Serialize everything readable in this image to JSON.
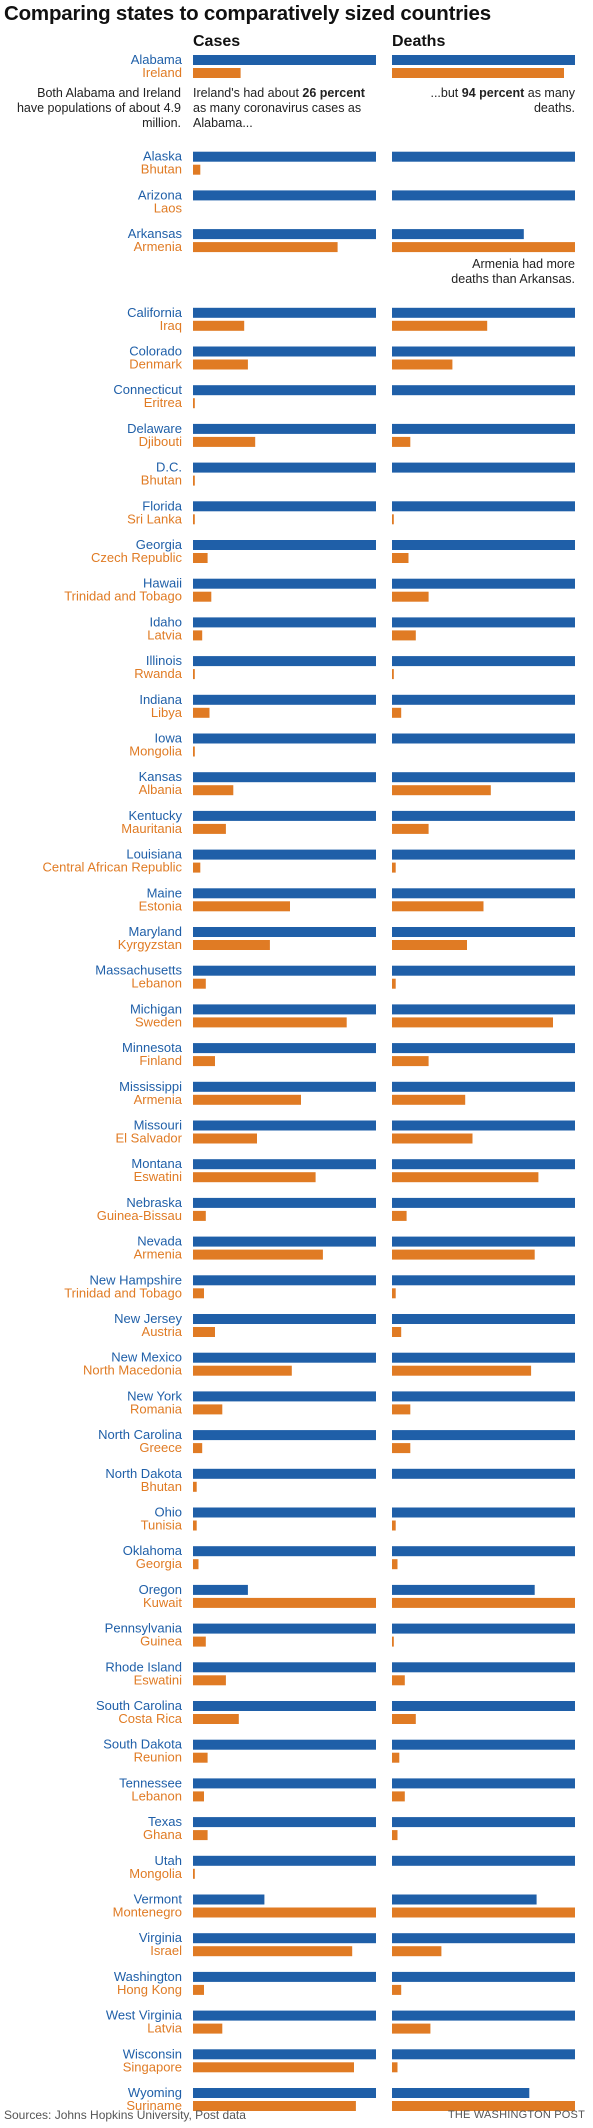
{
  "title": "Comparing states to comparatively sized countries",
  "columns": {
    "cases": "Cases",
    "deaths": "Deaths"
  },
  "colors": {
    "state": "#1f5fa8",
    "country": "#e07b24"
  },
  "notes": {
    "populations": "Both Alabama and Ireland have populations of about 4.9 million.",
    "cases_pre": "Ireland's had about ",
    "cases_bold": "26 percent",
    "cases_post": " as many coronavirus cases as Alabama...",
    "deaths_pre": "...but ",
    "deaths_bold": "94 percent",
    "deaths_post": " as many deaths.",
    "armenia": "Armenia had more deaths than Arkansas."
  },
  "footer": {
    "source": "Sources: Johns Hopkins University, Post data",
    "credit": "THE WASHINGTON POST"
  },
  "chart_data": {
    "type": "bar",
    "title": "Comparing states to comparatively sized countries",
    "value_scale": "relative share, larger of each pair = 1",
    "series": [
      "Cases",
      "Deaths"
    ],
    "pairs": [
      {
        "state": "Alabama",
        "country": "Ireland",
        "cases": [
          1,
          0.26
        ],
        "deaths": [
          1,
          0.94
        ]
      },
      {
        "state": "Alaska",
        "country": "Bhutan",
        "cases": [
          1,
          0.04
        ],
        "deaths": [
          1,
          0
        ]
      },
      {
        "state": "Arizona",
        "country": "Laos",
        "cases": [
          1,
          0
        ],
        "deaths": [
          1,
          0
        ]
      },
      {
        "state": "Arkansas",
        "country": "Armenia",
        "cases": [
          1,
          0.79
        ],
        "deaths": [
          0.72,
          1
        ]
      },
      {
        "state": "California",
        "country": "Iraq",
        "cases": [
          1,
          0.28
        ],
        "deaths": [
          1,
          0.52
        ]
      },
      {
        "state": "Colorado",
        "country": "Denmark",
        "cases": [
          1,
          0.3
        ],
        "deaths": [
          1,
          0.33
        ]
      },
      {
        "state": "Connecticut",
        "country": "Eritrea",
        "cases": [
          1,
          0.01
        ],
        "deaths": [
          1,
          0
        ]
      },
      {
        "state": "Delaware",
        "country": "Djibouti",
        "cases": [
          1,
          0.34
        ],
        "deaths": [
          1,
          0.1
        ]
      },
      {
        "state": "D.C.",
        "country": "Bhutan",
        "cases": [
          1,
          0.01
        ],
        "deaths": [
          1,
          0
        ]
      },
      {
        "state": "Florida",
        "country": "Sri Lanka",
        "cases": [
          1,
          0.01
        ],
        "deaths": [
          1,
          0.01
        ]
      },
      {
        "state": "Georgia",
        "country": "Czech Republic",
        "cases": [
          1,
          0.08
        ],
        "deaths": [
          1,
          0.09
        ]
      },
      {
        "state": "Hawaii",
        "country": "Trinidad and Tobago",
        "cases": [
          1,
          0.1
        ],
        "deaths": [
          1,
          0.2
        ]
      },
      {
        "state": "Idaho",
        "country": "Latvia",
        "cases": [
          1,
          0.05
        ],
        "deaths": [
          1,
          0.13
        ]
      },
      {
        "state": "Illinois",
        "country": "Rwanda",
        "cases": [
          1,
          0.01
        ],
        "deaths": [
          1,
          0.01
        ]
      },
      {
        "state": "Indiana",
        "country": "Libya",
        "cases": [
          1,
          0.09
        ],
        "deaths": [
          1,
          0.05
        ]
      },
      {
        "state": "Iowa",
        "country": "Mongolia",
        "cases": [
          1,
          0.01
        ],
        "deaths": [
          1,
          0
        ]
      },
      {
        "state": "Kansas",
        "country": "Albania",
        "cases": [
          1,
          0.22
        ],
        "deaths": [
          1,
          0.54
        ]
      },
      {
        "state": "Kentucky",
        "country": "Mauritania",
        "cases": [
          1,
          0.18
        ],
        "deaths": [
          1,
          0.2
        ]
      },
      {
        "state": "Louisiana",
        "country": "Central African Republic",
        "cases": [
          1,
          0.04
        ],
        "deaths": [
          1,
          0.02
        ]
      },
      {
        "state": "Maine",
        "country": "Estonia",
        "cases": [
          1,
          0.53
        ],
        "deaths": [
          1,
          0.5
        ]
      },
      {
        "state": "Maryland",
        "country": "Kyrgyzstan",
        "cases": [
          1,
          0.42
        ],
        "deaths": [
          1,
          0.41
        ]
      },
      {
        "state": "Massachusetts",
        "country": "Lebanon",
        "cases": [
          1,
          0.07
        ],
        "deaths": [
          1,
          0.02
        ]
      },
      {
        "state": "Michigan",
        "country": "Sweden",
        "cases": [
          1,
          0.84
        ],
        "deaths": [
          1,
          0.88
        ]
      },
      {
        "state": "Minnesota",
        "country": "Finland",
        "cases": [
          1,
          0.12
        ],
        "deaths": [
          1,
          0.2
        ]
      },
      {
        "state": "Mississippi",
        "country": "Armenia",
        "cases": [
          1,
          0.59
        ],
        "deaths": [
          1,
          0.4
        ]
      },
      {
        "state": "Missouri",
        "country": "El Salvador",
        "cases": [
          1,
          0.35
        ],
        "deaths": [
          1,
          0.44
        ]
      },
      {
        "state": "Montana",
        "country": "Eswatini",
        "cases": [
          1,
          0.67
        ],
        "deaths": [
          1,
          0.8
        ]
      },
      {
        "state": "Nebraska",
        "country": "Guinea-Bissau",
        "cases": [
          1,
          0.07
        ],
        "deaths": [
          1,
          0.08
        ]
      },
      {
        "state": "Nevada",
        "country": "Armenia",
        "cases": [
          1,
          0.71
        ],
        "deaths": [
          1,
          0.78
        ]
      },
      {
        "state": "New Hampshire",
        "country": "Trinidad and Tobago",
        "cases": [
          1,
          0.06
        ],
        "deaths": [
          1,
          0.02
        ]
      },
      {
        "state": "New Jersey",
        "country": "Austria",
        "cases": [
          1,
          0.12
        ],
        "deaths": [
          1,
          0.05
        ]
      },
      {
        "state": "New Mexico",
        "country": "North Macedonia",
        "cases": [
          1,
          0.54
        ],
        "deaths": [
          1,
          0.76
        ]
      },
      {
        "state": "New York",
        "country": "Romania",
        "cases": [
          1,
          0.16
        ],
        "deaths": [
          1,
          0.1
        ]
      },
      {
        "state": "North Carolina",
        "country": "Greece",
        "cases": [
          1,
          0.05
        ],
        "deaths": [
          1,
          0.1
        ]
      },
      {
        "state": "North Dakota",
        "country": "Bhutan",
        "cases": [
          1,
          0.02
        ],
        "deaths": [
          1,
          0
        ]
      },
      {
        "state": "Ohio",
        "country": "Tunisia",
        "cases": [
          1,
          0.02
        ],
        "deaths": [
          1,
          0.02
        ]
      },
      {
        "state": "Oklahoma",
        "country": "Georgia",
        "cases": [
          1,
          0.03
        ],
        "deaths": [
          1,
          0.03
        ]
      },
      {
        "state": "Oregon",
        "country": "Kuwait",
        "cases": [
          0.3,
          1
        ],
        "deaths": [
          0.78,
          1
        ]
      },
      {
        "state": "Pennsylvania",
        "country": "Guinea",
        "cases": [
          1,
          0.07
        ],
        "deaths": [
          1,
          0.01
        ]
      },
      {
        "state": "Rhode Island",
        "country": "Eswatini",
        "cases": [
          1,
          0.18
        ],
        "deaths": [
          1,
          0.07
        ]
      },
      {
        "state": "South Carolina",
        "country": "Costa Rica",
        "cases": [
          1,
          0.25
        ],
        "deaths": [
          1,
          0.13
        ]
      },
      {
        "state": "South Dakota",
        "country": "Reunion",
        "cases": [
          1,
          0.08
        ],
        "deaths": [
          1,
          0.04
        ]
      },
      {
        "state": "Tennessee",
        "country": "Lebanon",
        "cases": [
          1,
          0.06
        ],
        "deaths": [
          1,
          0.07
        ]
      },
      {
        "state": "Texas",
        "country": "Ghana",
        "cases": [
          1,
          0.08
        ],
        "deaths": [
          1,
          0.03
        ]
      },
      {
        "state": "Utah",
        "country": "Mongolia",
        "cases": [
          1,
          0.01
        ],
        "deaths": [
          1,
          0
        ]
      },
      {
        "state": "Vermont",
        "country": "Montenegro",
        "cases": [
          0.39,
          1
        ],
        "deaths": [
          0.79,
          1
        ]
      },
      {
        "state": "Virginia",
        "country": "Israel",
        "cases": [
          1,
          0.87
        ],
        "deaths": [
          1,
          0.27
        ]
      },
      {
        "state": "Washington",
        "country": "Hong Kong",
        "cases": [
          1,
          0.06
        ],
        "deaths": [
          1,
          0.05
        ]
      },
      {
        "state": "West Virginia",
        "country": "Latvia",
        "cases": [
          1,
          0.16
        ],
        "deaths": [
          1,
          0.21
        ]
      },
      {
        "state": "Wisconsin",
        "country": "Singapore",
        "cases": [
          1,
          0.88
        ],
        "deaths": [
          1,
          0.03
        ]
      },
      {
        "state": "Wyoming",
        "country": "Suriname",
        "cases": [
          1,
          0.89
        ],
        "deaths": [
          0.75,
          1
        ]
      }
    ]
  }
}
